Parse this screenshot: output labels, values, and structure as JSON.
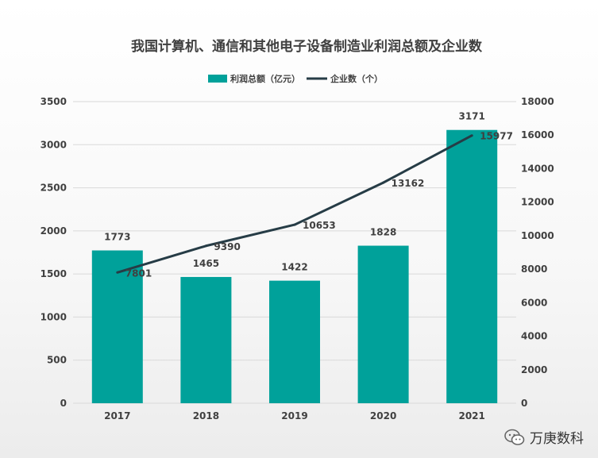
{
  "chart_data": {
    "type": "bar",
    "title": "我国计算机、通信和其他电子设备制造业利润总额及企业数",
    "categories": [
      "2017",
      "2018",
      "2019",
      "2020",
      "2021"
    ],
    "series": [
      {
        "name": "利润总额（亿元）",
        "type": "bar",
        "axis": "left",
        "values": [
          1773,
          1465,
          1422,
          1828,
          3171
        ],
        "color": "#00a19a"
      },
      {
        "name": "企业数（个）",
        "type": "line",
        "axis": "right",
        "values": [
          7801,
          9390,
          10653,
          13162,
          15977
        ],
        "color": "#263c46"
      }
    ],
    "ylim_left": [
      0,
      3500
    ],
    "yticks_left": [
      0,
      500,
      1000,
      1500,
      2000,
      2500,
      3000,
      3500
    ],
    "ylim_right": [
      0,
      18000
    ],
    "yticks_right": [
      0,
      2000,
      4000,
      6000,
      8000,
      10000,
      12000,
      14000,
      16000,
      18000
    ],
    "grid": true,
    "legend_position": "top-center"
  },
  "watermark": {
    "text": "万庚数科",
    "icon": "wechat-icon"
  }
}
